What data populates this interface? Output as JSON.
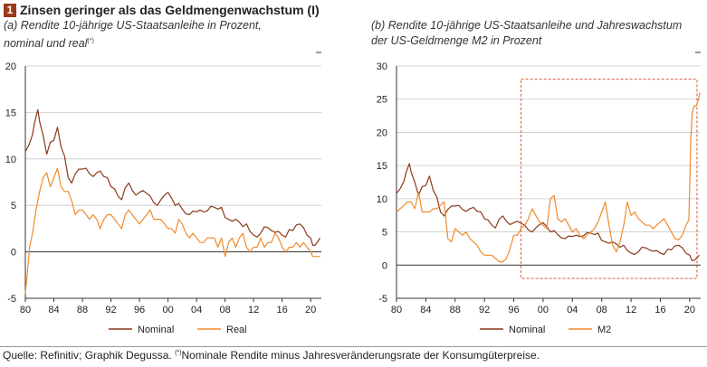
{
  "figure": {
    "number": "1",
    "title": "Zinsen geringer als das Geldmengenwachstum (I)",
    "footer_text": "Quelle: Refinitiv; Graphik Degussa.",
    "footer_mark": "(*)",
    "footer_note": "Nominale Rendite minus Jahresveränderungsrate der Konsumgüterpreise.",
    "colors": {
      "nominal": "#8a3a1c",
      "real": "#f08a2c",
      "m2": "#f08a2c",
      "highlight": "#d9573a",
      "grid": "#c8c8c8"
    }
  },
  "chart_data": [
    {
      "type": "line",
      "subtitle_line1": "(a) Rendite 10-jährige US-Staatsanleihe in Prozent,",
      "subtitle_line2": "nominal und real",
      "subtitle_mark": "(*)",
      "xlabel": "",
      "ylabel": "",
      "xlim": [
        1980,
        2021.5
      ],
      "ylim": [
        -5,
        20
      ],
      "yticks": [
        "-5",
        "0",
        "5",
        "10",
        "15",
        "20"
      ],
      "xticks": [
        "80",
        "84",
        "88",
        "92",
        "96",
        "00",
        "04",
        "08",
        "12",
        "16",
        "20"
      ],
      "legend_position": "bottom",
      "series": [
        {
          "name": "Nominal",
          "x": [
            1980,
            1980.5,
            1981,
            1981.3,
            1981.75,
            1982,
            1982.5,
            1983,
            1983.5,
            1984,
            1984.5,
            1985,
            1985.5,
            1986,
            1986.5,
            1987,
            1987.5,
            1988,
            1988.5,
            1989,
            1989.5,
            1990,
            1990.5,
            1991,
            1991.5,
            1992,
            1992.5,
            1993,
            1993.5,
            1994,
            1994.5,
            1995,
            1995.5,
            1996,
            1996.5,
            1997,
            1997.5,
            1998,
            1998.5,
            1999,
            1999.5,
            2000,
            2000.5,
            2001,
            2001.5,
            2002,
            2002.5,
            2003,
            2003.5,
            2004,
            2004.5,
            2005,
            2005.5,
            2006,
            2006.5,
            2007,
            2007.5,
            2008,
            2008.5,
            2009,
            2009.5,
            2010,
            2010.5,
            2011,
            2011.5,
            2012,
            2012.5,
            2013,
            2013.5,
            2014,
            2014.5,
            2015,
            2015.5,
            2016,
            2016.5,
            2017,
            2017.5,
            2018,
            2018.5,
            2019,
            2019.5,
            2020,
            2020.3,
            2020.6,
            2021,
            2021.3
          ],
          "values": [
            10.8,
            11.5,
            12.6,
            13.9,
            15.3,
            14.0,
            12.5,
            10.5,
            11.8,
            12.0,
            13.4,
            11.3,
            10.3,
            8.0,
            7.4,
            8.4,
            8.9,
            8.9,
            9.0,
            8.4,
            8.1,
            8.5,
            8.7,
            8.1,
            8.0,
            7.0,
            6.8,
            6.0,
            5.6,
            6.9,
            7.4,
            6.6,
            6.1,
            6.4,
            6.6,
            6.3,
            6.0,
            5.3,
            5.0,
            5.6,
            6.1,
            6.4,
            5.8,
            5.0,
            5.2,
            4.6,
            4.1,
            4.0,
            4.4,
            4.3,
            4.5,
            4.3,
            4.4,
            4.9,
            4.8,
            4.6,
            4.8,
            3.7,
            3.5,
            3.3,
            3.5,
            3.2,
            2.7,
            3.0,
            2.2,
            1.8,
            1.6,
            2.0,
            2.7,
            2.6,
            2.3,
            2.1,
            2.2,
            1.8,
            1.6,
            2.4,
            2.3,
            2.9,
            3.0,
            2.6,
            1.8,
            1.5,
            0.7,
            0.7,
            1.1,
            1.5
          ]
        },
        {
          "name": "Real",
          "x": [
            1980,
            1980.3,
            1980.6,
            1981,
            1981.5,
            1982,
            1982.5,
            1983,
            1983.5,
            1984,
            1984.5,
            1985,
            1985.5,
            1986,
            1986.5,
            1987,
            1987.5,
            1988,
            1988.5,
            1989,
            1989.5,
            1990,
            1990.5,
            1991,
            1991.5,
            1992,
            1992.5,
            1993,
            1993.5,
            1994,
            1994.5,
            1995,
            1995.5,
            1996,
            1996.5,
            1997,
            1997.5,
            1998,
            1998.5,
            1999,
            1999.5,
            2000,
            2000.5,
            2001,
            2001.5,
            2002,
            2002.5,
            2003,
            2003.5,
            2004,
            2004.5,
            2005,
            2005.5,
            2006,
            2006.5,
            2007,
            2007.5,
            2008,
            2008.5,
            2009,
            2009.5,
            2010,
            2010.5,
            2011,
            2011.5,
            2012,
            2012.5,
            2013,
            2013.5,
            2014,
            2014.5,
            2015,
            2015.5,
            2016,
            2016.5,
            2017,
            2017.5,
            2018,
            2018.5,
            2019,
            2019.5,
            2020,
            2020.3,
            2020.6,
            2021,
            2021.3
          ],
          "values": [
            -4.5,
            -2.0,
            0.5,
            2.0,
            4.5,
            6.5,
            8.0,
            8.5,
            7.0,
            8.0,
            9.0,
            7.0,
            6.5,
            6.5,
            5.5,
            4.0,
            4.5,
            4.5,
            4.0,
            3.5,
            4.0,
            3.5,
            2.5,
            3.5,
            4.0,
            4.0,
            3.5,
            3.0,
            2.5,
            4.0,
            4.5,
            4.0,
            3.5,
            3.0,
            3.5,
            4.0,
            4.5,
            3.5,
            3.5,
            3.5,
            3.0,
            2.5,
            2.5,
            2.0,
            3.5,
            3.0,
            2.0,
            1.5,
            2.0,
            1.5,
            1.0,
            1.0,
            1.5,
            1.5,
            1.5,
            0.5,
            1.5,
            -0.5,
            1.0,
            1.5,
            0.5,
            1.5,
            2.0,
            0.5,
            0.0,
            0.5,
            0.5,
            1.5,
            0.5,
            1.0,
            1.0,
            2.0,
            1.5,
            0.5,
            0.0,
            0.5,
            0.5,
            1.0,
            0.5,
            1.0,
            0.5,
            0.0,
            -0.5,
            -0.5,
            -0.5,
            -0.5
          ]
        }
      ]
    },
    {
      "type": "line",
      "subtitle_line1": "(b) Rendite 10-jährige US-Staatsanleihe und Jahreswachstum",
      "subtitle_line2": "der US-Geldmenge M2 in Prozent",
      "xlabel": "",
      "ylabel": "",
      "xlim": [
        1980,
        2021.5
      ],
      "ylim": [
        -5,
        30
      ],
      "yticks": [
        "-5",
        "0",
        "5",
        "10",
        "15",
        "20",
        "25",
        "30"
      ],
      "xticks": [
        "80",
        "84",
        "88",
        "92",
        "96",
        "00",
        "04",
        "08",
        "12",
        "16",
        "20"
      ],
      "legend_position": "bottom",
      "highlight_range": {
        "x": [
          1997,
          2021
        ],
        "y": [
          -2,
          28
        ]
      },
      "series": [
        {
          "name": "Nominal",
          "x": [
            1980,
            1980.5,
            1981,
            1981.3,
            1981.75,
            1982,
            1982.5,
            1983,
            1983.5,
            1984,
            1984.5,
            1985,
            1985.5,
            1986,
            1986.5,
            1987,
            1987.5,
            1988,
            1988.5,
            1989,
            1989.5,
            1990,
            1990.5,
            1991,
            1991.5,
            1992,
            1992.5,
            1993,
            1993.5,
            1994,
            1994.5,
            1995,
            1995.5,
            1996,
            1996.5,
            1997,
            1997.5,
            1998,
            1998.5,
            1999,
            1999.5,
            2000,
            2000.5,
            2001,
            2001.5,
            2002,
            2002.5,
            2003,
            2003.5,
            2004,
            2004.5,
            2005,
            2005.5,
            2006,
            2006.5,
            2007,
            2007.5,
            2008,
            2008.5,
            2009,
            2009.5,
            2010,
            2010.5,
            2011,
            2011.5,
            2012,
            2012.5,
            2013,
            2013.5,
            2014,
            2014.5,
            2015,
            2015.5,
            2016,
            2016.5,
            2017,
            2017.5,
            2018,
            2018.5,
            2019,
            2019.5,
            2020,
            2020.3,
            2020.6,
            2021,
            2021.3
          ],
          "values": [
            10.8,
            11.5,
            12.6,
            13.9,
            15.3,
            14.0,
            12.5,
            10.5,
            11.8,
            12.0,
            13.4,
            11.3,
            10.3,
            8.0,
            7.4,
            8.4,
            8.9,
            8.9,
            9.0,
            8.4,
            8.1,
            8.5,
            8.7,
            8.1,
            8.0,
            7.0,
            6.8,
            6.0,
            5.6,
            6.9,
            7.4,
            6.6,
            6.1,
            6.4,
            6.6,
            6.3,
            6.0,
            5.3,
            5.0,
            5.6,
            6.1,
            6.4,
            5.8,
            5.0,
            5.2,
            4.6,
            4.1,
            4.0,
            4.4,
            4.3,
            4.5,
            4.3,
            4.4,
            4.9,
            4.8,
            4.6,
            4.8,
            3.7,
            3.5,
            3.3,
            3.5,
            3.2,
            2.7,
            3.0,
            2.2,
            1.8,
            1.6,
            2.0,
            2.7,
            2.6,
            2.3,
            2.1,
            2.2,
            1.8,
            1.6,
            2.4,
            2.3,
            2.9,
            3.0,
            2.6,
            1.8,
            1.5,
            0.7,
            0.7,
            1.1,
            1.5
          ]
        },
        {
          "name": "M2",
          "x": [
            1980,
            1980.5,
            1981,
            1981.5,
            1982,
            1982.5,
            1983,
            1983.5,
            1984,
            1984.5,
            1985,
            1985.5,
            1986,
            1986.5,
            1987,
            1987.5,
            1988,
            1988.5,
            1989,
            1989.5,
            1990,
            1990.5,
            1991,
            1991.5,
            1992,
            1992.5,
            1993,
            1993.5,
            1994,
            1994.5,
            1995,
            1995.5,
            1996,
            1996.5,
            1997,
            1997.5,
            1998,
            1998.5,
            1999,
            1999.5,
            2000,
            2000.5,
            2001,
            2001.5,
            2002,
            2002.5,
            2003,
            2003.5,
            2004,
            2004.5,
            2005,
            2005.5,
            2006,
            2006.5,
            2007,
            2007.5,
            2008,
            2008.5,
            2009,
            2009.5,
            2010,
            2010.5,
            2011,
            2011.5,
            2012,
            2012.5,
            2013,
            2013.5,
            2014,
            2014.5,
            2015,
            2015.5,
            2016,
            2016.5,
            2017,
            2017.5,
            2018,
            2018.5,
            2019,
            2019.5,
            2019.9,
            2020.15,
            2020.35,
            2020.6,
            2020.9,
            2021.2,
            2021.4
          ],
          "values": [
            8.0,
            8.5,
            9.0,
            9.5,
            9.5,
            8.5,
            11.0,
            8.0,
            8.0,
            8.0,
            8.5,
            8.5,
            9.0,
            9.5,
            4.0,
            3.5,
            5.5,
            5.0,
            4.5,
            5.0,
            4.0,
            3.5,
            3.0,
            2.0,
            1.5,
            1.5,
            1.5,
            1.0,
            0.5,
            0.5,
            1.0,
            2.5,
            4.5,
            4.5,
            5.5,
            6.0,
            7.0,
            8.5,
            7.5,
            6.5,
            6.0,
            5.5,
            10.0,
            10.5,
            7.0,
            6.5,
            7.0,
            6.0,
            5.0,
            5.5,
            4.5,
            4.0,
            4.5,
            5.0,
            5.5,
            6.5,
            8.0,
            9.5,
            6.0,
            3.0,
            2.0,
            3.5,
            6.0,
            9.5,
            7.5,
            8.0,
            7.0,
            6.5,
            6.0,
            6.0,
            5.5,
            6.0,
            6.5,
            7.0,
            6.0,
            5.0,
            4.0,
            3.8,
            4.5,
            6.0,
            6.8,
            19.0,
            23.0,
            24.0,
            24.0,
            25.0,
            26.0
          ]
        }
      ]
    }
  ]
}
